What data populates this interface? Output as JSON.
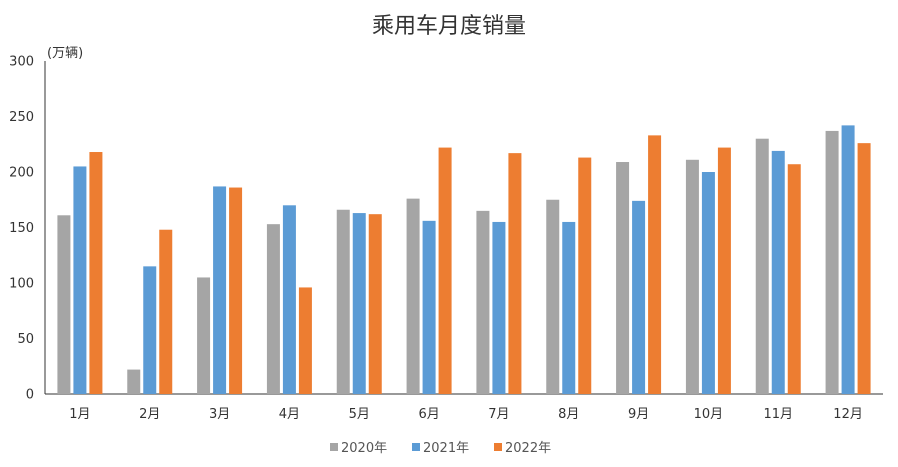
{
  "chart_data": {
    "type": "bar",
    "title": "乘用车月度销量",
    "unit_label": "(万辆)",
    "xlabel": "",
    "ylabel": "",
    "ylim": [
      0,
      300
    ],
    "yticks": [
      0,
      50,
      100,
      150,
      200,
      250,
      300
    ],
    "grid": false,
    "legend_position": "bottom",
    "categories": [
      "1月",
      "2月",
      "3月",
      "4月",
      "5月",
      "6月",
      "7月",
      "8月",
      "9月",
      "10月",
      "11月",
      "12月"
    ],
    "series": [
      {
        "name": "2020年",
        "color": "#a5a5a5",
        "values": [
          161,
          22,
          105,
          153,
          166,
          176,
          165,
          175,
          209,
          211,
          230,
          237
        ]
      },
      {
        "name": "2021年",
        "color": "#5b9bd5",
        "values": [
          205,
          115,
          187,
          170,
          163,
          156,
          155,
          155,
          174,
          200,
          219,
          242
        ]
      },
      {
        "name": "2022年",
        "color": "#ed7d31",
        "values": [
          218,
          148,
          186,
          96,
          162,
          222,
          217,
          213,
          233,
          222,
          207,
          226
        ]
      }
    ]
  }
}
